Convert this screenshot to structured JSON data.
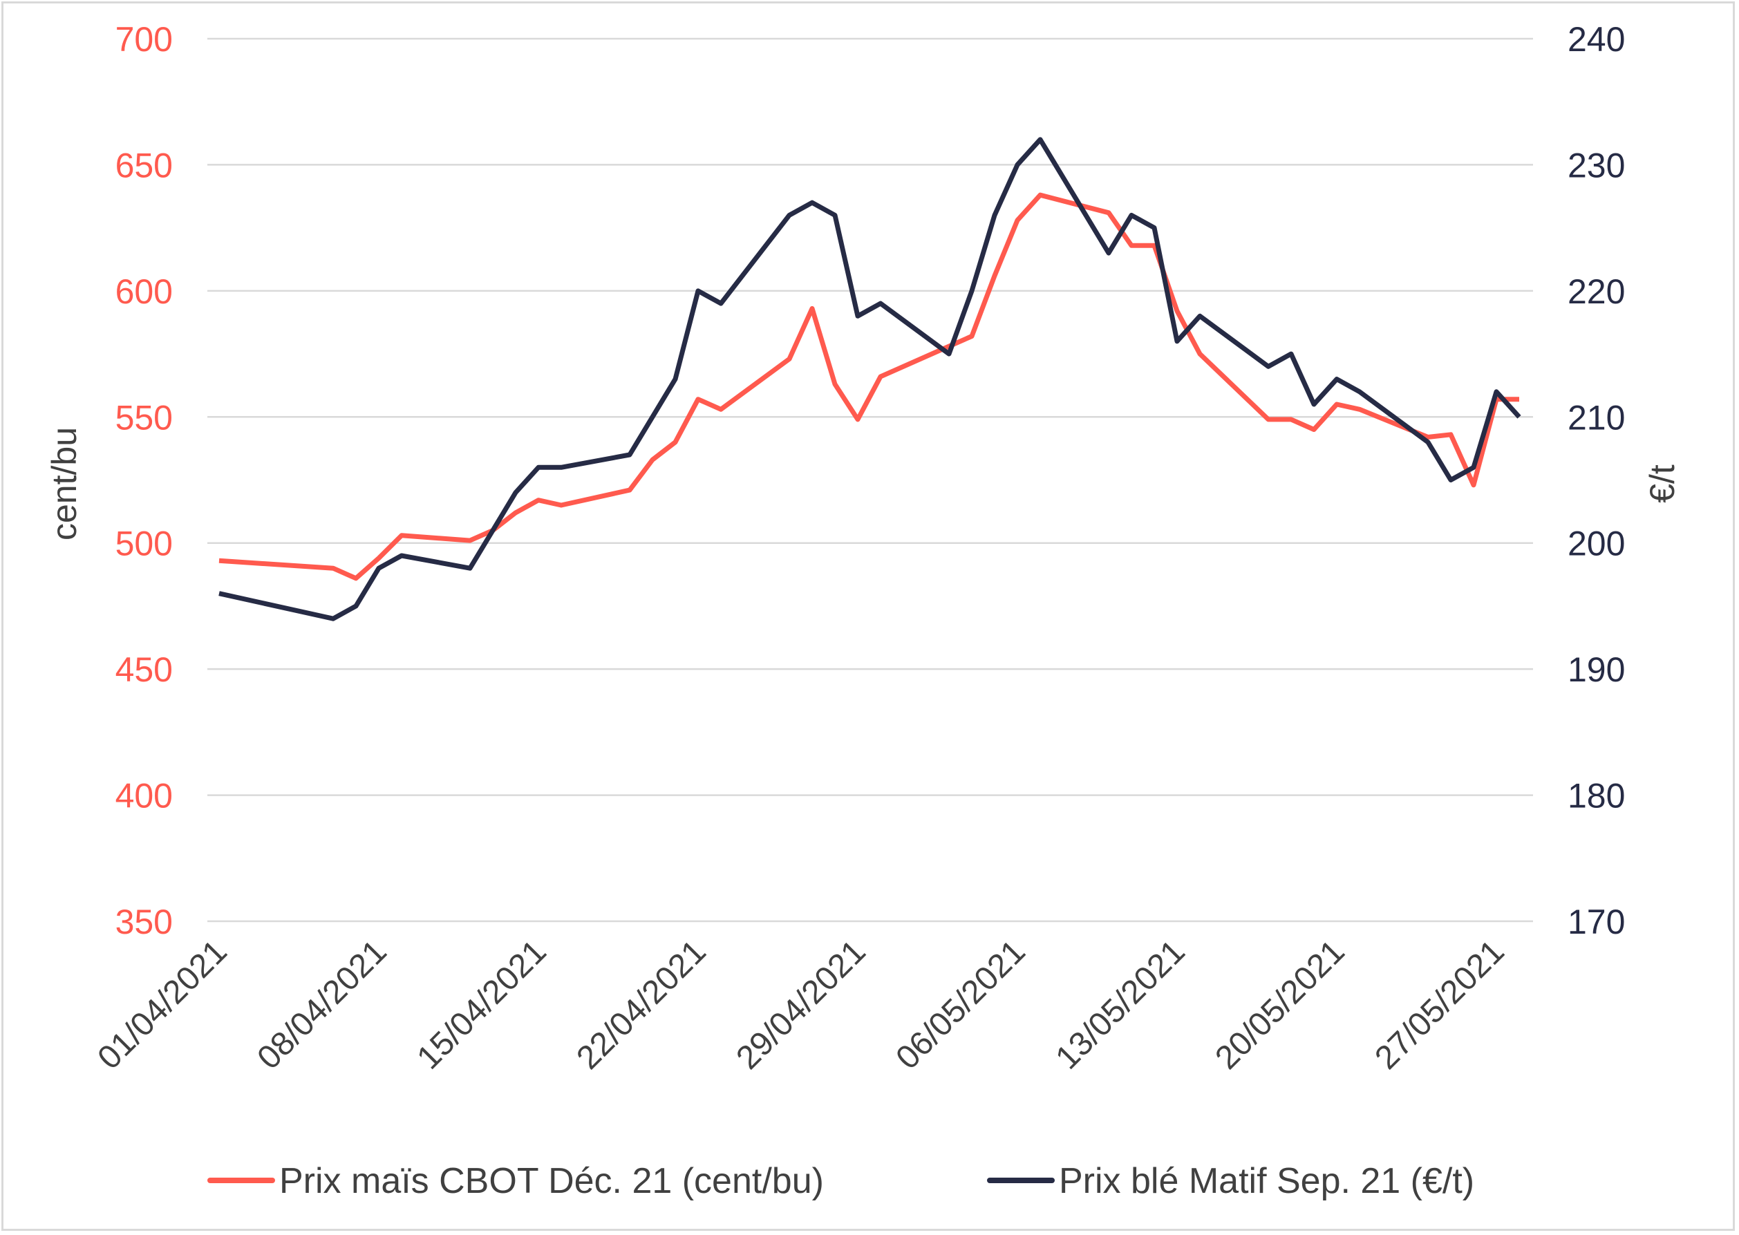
{
  "chart_data": {
    "type": "line",
    "title": "",
    "colors": {
      "corn": "#ff5a4e",
      "wheat": "#262b45",
      "grid": "#d9d9d9",
      "text": "#404040"
    },
    "y_left": {
      "label": "cent/bu",
      "min": 350,
      "max": 700,
      "ticks": [
        350,
        400,
        450,
        500,
        550,
        600,
        650,
        700
      ]
    },
    "y_right": {
      "label": "€/t",
      "min": 170,
      "max": 240,
      "ticks": [
        170,
        180,
        190,
        200,
        210,
        220,
        230,
        240
      ]
    },
    "x_tick_labels": [
      "01/04/2021",
      "08/04/2021",
      "15/04/2021",
      "22/04/2021",
      "29/04/2021",
      "06/05/2021",
      "13/05/2021",
      "20/05/2021",
      "27/05/2021"
    ],
    "grid": true,
    "legend_position": "bottom",
    "series": [
      {
        "name": "Prix maïs CBOT Déc. 21 (cent/bu)",
        "axis": "left",
        "color": "#ff5a4e",
        "points": [
          [
            "01/04/2021",
            493
          ],
          [
            "06/04/2021",
            490
          ],
          [
            "07/04/2021",
            486
          ],
          [
            "08/04/2021",
            494
          ],
          [
            "09/04/2021",
            503
          ],
          [
            "12/04/2021",
            501
          ],
          [
            "13/04/2021",
            505
          ],
          [
            "14/04/2021",
            512
          ],
          [
            "15/04/2021",
            517
          ],
          [
            "16/04/2021",
            515
          ],
          [
            "19/04/2021",
            521
          ],
          [
            "20/04/2021",
            533
          ],
          [
            "21/04/2021",
            540
          ],
          [
            "22/04/2021",
            557
          ],
          [
            "23/04/2021",
            553
          ],
          [
            "26/04/2021",
            573
          ],
          [
            "27/04/2021",
            593
          ],
          [
            "28/04/2021",
            563
          ],
          [
            "29/04/2021",
            549
          ],
          [
            "30/04/2021",
            566
          ],
          [
            "03/05/2021",
            578
          ],
          [
            "04/05/2021",
            582
          ],
          [
            "05/05/2021",
            606
          ],
          [
            "06/05/2021",
            628
          ],
          [
            "07/05/2021",
            638
          ],
          [
            "10/05/2021",
            631
          ],
          [
            "11/05/2021",
            618
          ],
          [
            "12/05/2021",
            618
          ],
          [
            "13/05/2021",
            592
          ],
          [
            "14/05/2021",
            575
          ],
          [
            "17/05/2021",
            549
          ],
          [
            "18/05/2021",
            549
          ],
          [
            "19/05/2021",
            545
          ],
          [
            "20/05/2021",
            555
          ],
          [
            "21/05/2021",
            553
          ],
          [
            "24/05/2021",
            542
          ],
          [
            "25/05/2021",
            543
          ],
          [
            "26/05/2021",
            523
          ],
          [
            "27/05/2021",
            557
          ],
          [
            "28/05/2021",
            557
          ]
        ]
      },
      {
        "name": "Prix blé Matif Sep. 21 (€/t)",
        "axis": "right",
        "color": "#262b45",
        "points": [
          [
            "01/04/2021",
            196
          ],
          [
            "06/04/2021",
            194
          ],
          [
            "07/04/2021",
            195
          ],
          [
            "08/04/2021",
            198
          ],
          [
            "09/04/2021",
            199
          ],
          [
            "12/04/2021",
            198
          ],
          [
            "13/04/2021",
            201
          ],
          [
            "14/04/2021",
            204
          ],
          [
            "15/04/2021",
            206
          ],
          [
            "16/04/2021",
            206
          ],
          [
            "19/04/2021",
            207
          ],
          [
            "20/04/2021",
            210
          ],
          [
            "21/04/2021",
            213
          ],
          [
            "22/04/2021",
            220
          ],
          [
            "23/04/2021",
            219
          ],
          [
            "26/04/2021",
            226
          ],
          [
            "27/04/2021",
            227
          ],
          [
            "28/04/2021",
            226
          ],
          [
            "29/04/2021",
            218
          ],
          [
            "30/04/2021",
            219
          ],
          [
            "03/05/2021",
            215
          ],
          [
            "04/05/2021",
            220
          ],
          [
            "05/05/2021",
            226
          ],
          [
            "06/05/2021",
            230
          ],
          [
            "07/05/2021",
            232
          ],
          [
            "10/05/2021",
            223
          ],
          [
            "11/05/2021",
            226
          ],
          [
            "12/05/2021",
            225
          ],
          [
            "13/05/2021",
            216
          ],
          [
            "14/05/2021",
            218
          ],
          [
            "17/05/2021",
            214
          ],
          [
            "18/05/2021",
            215
          ],
          [
            "19/05/2021",
            211
          ],
          [
            "20/05/2021",
            213
          ],
          [
            "21/05/2021",
            212
          ],
          [
            "24/05/2021",
            208
          ],
          [
            "25/05/2021",
            205
          ],
          [
            "26/05/2021",
            206
          ],
          [
            "27/05/2021",
            212
          ],
          [
            "28/05/2021",
            210
          ]
        ]
      }
    ]
  }
}
